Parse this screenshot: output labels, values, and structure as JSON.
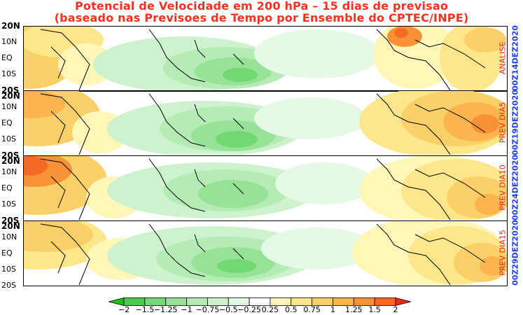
{
  "title": {
    "line1": "Potencial de Velocidade em 200 hPa – 15 dias de previsao",
    "line2": "(baseado nas Previsoes de Tempo por Ensemble do CPTEC/INPE)"
  },
  "latitude_labels": [
    "20N",
    "10N",
    "EQ",
    "10S",
    "20S"
  ],
  "panels": [
    {
      "label": "ANALISE",
      "date": "00Z14DEZ2020"
    },
    {
      "label": "PREV DIA5",
      "date": "00Z19DEZ2020"
    },
    {
      "label": "PREV DIA10",
      "date": "00Z24DEZ2020"
    },
    {
      "label": "PREV DIA15",
      "date": "00Z29DEZ2020"
    }
  ],
  "colorbar": {
    "labels": [
      "−2",
      "−1.5",
      "−1.25",
      "−1",
      "−0.75",
      "−0.5",
      "−0.25",
      "0.25",
      "0.5",
      "0.75",
      "1",
      "1.25",
      "1.5",
      "2"
    ],
    "colors": [
      "#1fbd1f",
      "#4ccc4c",
      "#72d872",
      "#96e296",
      "#b5ebb5",
      "#cef2ce",
      "#e6f8e6",
      "#ffffff",
      "#fff6b8",
      "#fde78a",
      "#fcd068",
      "#fbb44e",
      "#f89236",
      "#f56a22",
      "#ee2a10"
    ]
  },
  "colors": {
    "title": "#ee3322",
    "label_red": "#e82020",
    "label_blue": "#2040e0"
  }
}
